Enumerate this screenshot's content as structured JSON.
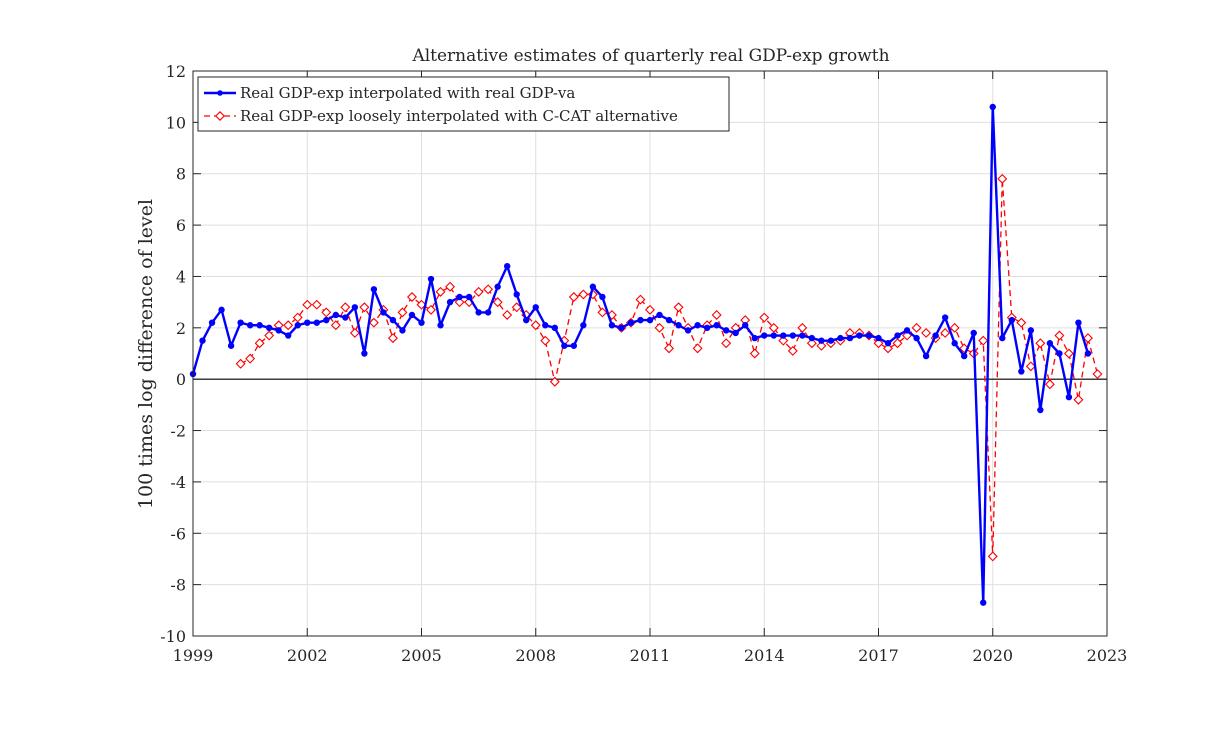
{
  "chart_data": {
    "type": "line",
    "title": "Alternative estimates of quarterly real GDP-exp growth",
    "xlabel": "",
    "ylabel": "100 times log difference of level",
    "xlim": [
      1999,
      2023
    ],
    "ylim": [
      -10,
      12
    ],
    "xticks": [
      1999,
      2002,
      2005,
      2008,
      2011,
      2014,
      2017,
      2020,
      2023
    ],
    "yticks": [
      -10,
      -8,
      -6,
      -4,
      -2,
      0,
      2,
      4,
      6,
      8,
      10,
      12
    ],
    "grid": true,
    "legend_position": "top-left",
    "zero_line": true,
    "series": [
      {
        "name": "Real GDP-exp interpolated with real GDP-va",
        "color": "#0000ff",
        "marker": "filled-circle",
        "line_style": "solid",
        "x_start": 1999.0,
        "x_step": 0.25,
        "values": [
          0.2,
          1.5,
          2.2,
          2.7,
          1.3,
          2.2,
          2.1,
          2.1,
          2.0,
          1.9,
          1.7,
          2.1,
          2.2,
          2.2,
          2.3,
          2.5,
          2.4,
          2.8,
          1.0,
          3.5,
          2.6,
          2.3,
          1.9,
          2.5,
          2.2,
          3.9,
          2.1,
          3.0,
          3.2,
          3.2,
          2.6,
          2.6,
          3.6,
          4.4,
          3.3,
          2.3,
          2.8,
          2.1,
          2.0,
          1.3,
          1.3,
          2.1,
          3.6,
          3.2,
          2.1,
          2.0,
          2.2,
          2.3,
          2.3,
          2.5,
          2.3,
          2.1,
          1.9,
          2.1,
          2.0,
          2.1,
          1.9,
          1.8,
          2.1,
          1.6,
          1.7,
          1.7,
          1.7,
          1.7,
          1.7,
          1.6,
          1.5,
          1.5,
          1.6,
          1.6,
          1.7,
          1.7,
          1.6,
          1.4,
          1.7,
          1.9,
          1.6,
          0.9,
          1.7,
          2.4,
          1.4,
          0.9,
          1.8,
          -8.7,
          10.6,
          1.6,
          2.3,
          0.3,
          1.9,
          -1.2,
          1.4,
          1.0,
          -0.7,
          2.2,
          1.0
        ]
      },
      {
        "name": "Real GDP-exp loosely interpolated with C-CAT alternative",
        "color": "#ff0000",
        "marker": "diamond",
        "line_style": "dashed",
        "x_start": 2000.25,
        "x_step": 0.25,
        "values": [
          0.6,
          0.8,
          1.4,
          1.7,
          2.1,
          2.1,
          2.4,
          2.9,
          2.9,
          2.6,
          2.1,
          2.8,
          1.8,
          2.8,
          2.2,
          2.7,
          1.6,
          2.6,
          3.2,
          2.9,
          2.7,
          3.4,
          3.6,
          3.0,
          3.0,
          3.4,
          3.5,
          3.0,
          2.5,
          2.8,
          2.5,
          2.1,
          1.5,
          -0.1,
          1.5,
          3.2,
          3.3,
          3.3,
          2.6,
          2.5,
          2.0,
          2.2,
          3.1,
          2.7,
          2.0,
          1.2,
          2.8,
          2.0,
          1.2,
          2.1,
          2.5,
          1.4,
          2.0,
          2.3,
          1.0,
          2.4,
          2.0,
          1.5,
          1.1,
          2.0,
          1.4,
          1.3,
          1.4,
          1.5,
          1.8,
          1.8,
          1.7,
          1.4,
          1.2,
          1.4,
          1.7,
          2.0,
          1.8,
          1.6,
          1.8,
          2.0,
          1.2,
          1.0,
          1.5,
          -6.9,
          7.8,
          2.4,
          2.2,
          0.5,
          1.4,
          -0.2,
          1.7,
          1.0,
          -0.8,
          1.6,
          0.2
        ]
      }
    ]
  }
}
